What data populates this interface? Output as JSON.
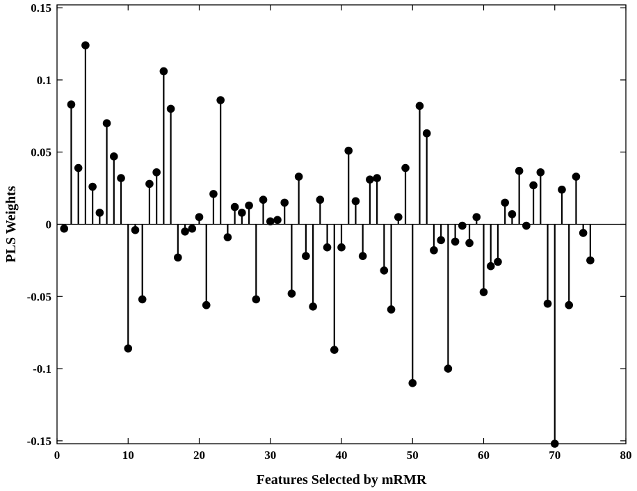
{
  "chart_data": {
    "type": "stem",
    "xlabel": "Features Selected by mRMR",
    "ylabel": "PLS Weights",
    "xlim": [
      0,
      80
    ],
    "ylim": [
      -0.152,
      0.152
    ],
    "xticks": [
      0,
      10,
      20,
      30,
      40,
      50,
      60,
      70,
      80
    ],
    "xtick_labels": [
      "0",
      "10",
      "20",
      "30",
      "40",
      "50",
      "60",
      "70",
      "80"
    ],
    "yticks": [
      0.15,
      0.1,
      0.05,
      0,
      -0.05,
      -0.1,
      -0.15
    ],
    "ytick_labels": [
      "0.15",
      "0.1",
      "0.05",
      "0",
      "-0.05",
      "-0.1",
      "-0.15"
    ],
    "grid": false,
    "baseline": 0,
    "marker": "filled-circle",
    "color": "#000000",
    "x": [
      1,
      2,
      3,
      4,
      5,
      6,
      7,
      8,
      9,
      10,
      11,
      12,
      13,
      14,
      15,
      16,
      17,
      18,
      19,
      20,
      21,
      22,
      23,
      24,
      25,
      26,
      27,
      28,
      29,
      30,
      31,
      32,
      33,
      34,
      35,
      36,
      37,
      38,
      39,
      40,
      41,
      42,
      43,
      44,
      45,
      46,
      47,
      48,
      49,
      50,
      51,
      52,
      53,
      54,
      55,
      56,
      57,
      58,
      59,
      60,
      61,
      62,
      63,
      64,
      65,
      66,
      67,
      68,
      69,
      70,
      71,
      72,
      73,
      74,
      75
    ],
    "y": [
      -0.003,
      0.083,
      0.039,
      0.124,
      0.026,
      0.008,
      0.07,
      0.047,
      0.032,
      -0.086,
      -0.004,
      -0.052,
      0.028,
      0.036,
      0.106,
      0.08,
      -0.023,
      -0.005,
      -0.003,
      0.005,
      -0.056,
      0.021,
      0.086,
      -0.009,
      0.012,
      0.008,
      0.013,
      -0.052,
      0.017,
      0.002,
      0.003,
      0.015,
      -0.048,
      0.033,
      -0.022,
      -0.057,
      0.017,
      -0.016,
      -0.087,
      -0.016,
      0.051,
      0.016,
      -0.022,
      0.031,
      0.032,
      -0.032,
      -0.059,
      0.005,
      0.039,
      -0.11,
      0.082,
      0.063,
      -0.018,
      -0.011,
      -0.1,
      -0.012,
      -0.001,
      -0.013,
      0.005,
      -0.047,
      -0.029,
      -0.026,
      0.015,
      0.007,
      0.037,
      -0.001,
      0.027,
      0.036,
      -0.055,
      -0.152,
      0.024,
      -0.056,
      0.033,
      -0.006,
      -0.025
    ]
  }
}
